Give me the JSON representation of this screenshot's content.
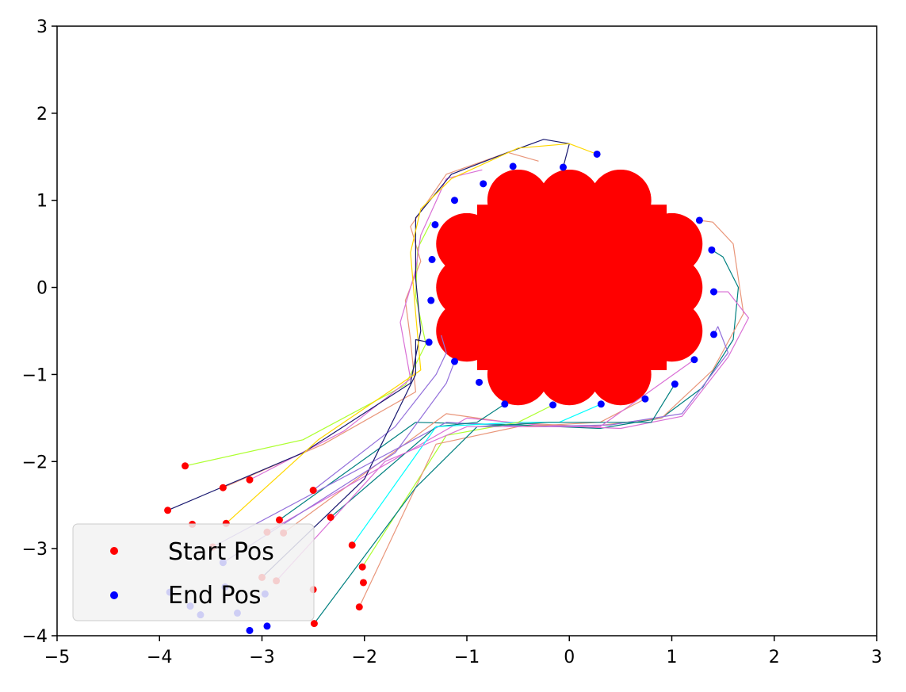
{
  "chart_data": {
    "type": "scatter",
    "title": "",
    "xlabel": "",
    "ylabel": "",
    "xlim": [
      -5,
      3
    ],
    "ylim": [
      -4,
      3
    ],
    "x_ticks": [
      -5,
      -4,
      -3,
      -2,
      -1,
      0,
      1,
      2,
      3
    ],
    "y_ticks": [
      -4,
      -3,
      -2,
      -1,
      0,
      1,
      2,
      3
    ],
    "x_tick_labels": [
      "−5",
      "−4",
      "−3",
      "−2",
      "−1",
      "0",
      "1",
      "2",
      "3"
    ],
    "y_tick_labels": [
      "−4",
      "−3",
      "−2",
      "−1",
      "0",
      "1",
      "2",
      "3"
    ],
    "grid": false,
    "legend": {
      "position": "lower-left",
      "entries": [
        {
          "label": "Start Pos",
          "color": "#ff0000"
        },
        {
          "label": "End Pos",
          "color": "#0000ff"
        }
      ]
    },
    "obstacle": {
      "color": "#ff0000",
      "rect": {
        "x0": -0.9,
        "x1": 0.95,
        "y0": -0.95,
        "y1": 0.95
      },
      "circles": [
        {
          "cx": -0.5,
          "cy": 1.0,
          "r": 0.3
        },
        {
          "cx": 0.0,
          "cy": 1.0,
          "r": 0.3
        },
        {
          "cx": 0.5,
          "cy": 1.0,
          "r": 0.3
        },
        {
          "cx": -0.5,
          "cy": -1.0,
          "r": 0.3
        },
        {
          "cx": 0.0,
          "cy": -1.0,
          "r": 0.3
        },
        {
          "cx": 0.5,
          "cy": -1.0,
          "r": 0.3
        },
        {
          "cx": -1.0,
          "cy": 0.5,
          "r": 0.3
        },
        {
          "cx": -1.0,
          "cy": 0.0,
          "r": 0.3
        },
        {
          "cx": -1.0,
          "cy": -0.5,
          "r": 0.3
        },
        {
          "cx": 1.0,
          "cy": 0.5,
          "r": 0.3
        },
        {
          "cx": 1.0,
          "cy": 0.0,
          "r": 0.3
        },
        {
          "cx": 1.0,
          "cy": -0.5,
          "r": 0.3
        }
      ]
    },
    "start_positions": [
      [
        -3.75,
        -2.05
      ],
      [
        -3.38,
        -2.3
      ],
      [
        -3.12,
        -2.21
      ],
      [
        -3.92,
        -2.56
      ],
      [
        -3.68,
        -2.72
      ],
      [
        -3.35,
        -2.71
      ],
      [
        -2.5,
        -2.33
      ],
      [
        -2.83,
        -2.67
      ],
      [
        -2.79,
        -2.82
      ],
      [
        -2.95,
        -2.81
      ],
      [
        -3.48,
        -2.98
      ],
      [
        -2.33,
        -2.64
      ],
      [
        -2.12,
        -2.96
      ],
      [
        -3.0,
        -3.33
      ],
      [
        -2.86,
        -3.37
      ],
      [
        -2.02,
        -3.21
      ],
      [
        -2.01,
        -3.39
      ],
      [
        -2.5,
        -3.47
      ],
      [
        -2.05,
        -3.67
      ],
      [
        -2.49,
        -3.86
      ]
    ],
    "end_positions": [
      [
        0.27,
        1.53
      ],
      [
        -0.06,
        1.38
      ],
      [
        -0.55,
        1.39
      ],
      [
        -0.84,
        1.19
      ],
      [
        -1.12,
        1.0
      ],
      [
        -1.31,
        0.72
      ],
      [
        -1.34,
        0.32
      ],
      [
        -1.35,
        -0.15
      ],
      [
        -1.37,
        -0.63
      ],
      [
        -1.12,
        -0.85
      ],
      [
        -0.88,
        -1.09
      ],
      [
        -0.63,
        -1.34
      ],
      [
        -0.16,
        -1.35
      ],
      [
        0.31,
        -1.34
      ],
      [
        0.74,
        -1.28
      ],
      [
        1.03,
        -1.11
      ],
      [
        1.22,
        -0.83
      ],
      [
        1.41,
        -0.54
      ],
      [
        1.41,
        -0.05
      ],
      [
        1.39,
        0.43
      ],
      [
        1.27,
        0.77
      ],
      [
        -3.38,
        -3.16
      ],
      [
        -3.9,
        -3.5
      ],
      [
        -3.36,
        -3.44
      ],
      [
        -3.7,
        -3.66
      ],
      [
        -3.6,
        -3.76
      ],
      [
        -3.24,
        -3.74
      ],
      [
        -3.12,
        -3.94
      ],
      [
        -2.95,
        -3.89
      ],
      [
        -2.97,
        -3.52
      ]
    ],
    "trajectories": [
      {
        "color": "#adff2f",
        "points": [
          [
            -3.75,
            -2.05
          ],
          [
            -2.6,
            -1.75
          ],
          [
            -1.6,
            -1.12
          ],
          [
            -1.4,
            -0.65
          ],
          [
            -1.5,
            -0.1
          ],
          [
            -1.48,
            0.45
          ],
          [
            -1.35,
            0.75
          ]
        ]
      },
      {
        "color": "#e9967a",
        "points": [
          [
            -3.38,
            -2.3
          ],
          [
            -2.4,
            -1.8
          ],
          [
            -1.5,
            -1.2
          ],
          [
            -1.55,
            -0.6
          ],
          [
            -1.6,
            -0.15
          ],
          [
            -1.45,
            0.3
          ],
          [
            -1.55,
            0.7
          ],
          [
            -1.2,
            1.3
          ],
          [
            -0.6,
            1.55
          ],
          [
            -0.3,
            1.45
          ]
        ]
      },
      {
        "color": "#da70d6",
        "points": [
          [
            -3.12,
            -2.21
          ],
          [
            -2.2,
            -1.65
          ],
          [
            -1.55,
            -1.05
          ],
          [
            -1.65,
            -0.4
          ],
          [
            -1.5,
            0.2
          ],
          [
            -1.45,
            0.6
          ],
          [
            -1.2,
            1.25
          ],
          [
            -0.85,
            1.35
          ]
        ]
      },
      {
        "color": "#191970",
        "points": [
          [
            -3.92,
            -2.56
          ],
          [
            -2.6,
            -1.9
          ],
          [
            -1.55,
            -1.1
          ],
          [
            -1.45,
            -0.5
          ],
          [
            -1.5,
            0.1
          ],
          [
            -1.5,
            0.8
          ],
          [
            -1.15,
            1.3
          ],
          [
            -0.6,
            1.55
          ],
          [
            -0.25,
            1.7
          ],
          [
            0.0,
            1.65
          ],
          [
            -0.06,
            1.38
          ]
        ]
      },
      {
        "color": "#ffd700",
        "points": [
          [
            -3.35,
            -2.71
          ],
          [
            -2.45,
            -1.75
          ],
          [
            -1.45,
            -0.95
          ],
          [
            -1.5,
            -0.3
          ],
          [
            -1.55,
            0.4
          ],
          [
            -1.45,
            0.9
          ],
          [
            -1.15,
            1.25
          ],
          [
            -0.5,
            1.6
          ],
          [
            0.0,
            1.65
          ],
          [
            0.27,
            1.53
          ]
        ]
      },
      {
        "color": "#9370db",
        "points": [
          [
            -2.5,
            -2.33
          ],
          [
            -1.7,
            -1.6
          ],
          [
            -1.3,
            -1.0
          ],
          [
            -1.2,
            -0.75
          ],
          [
            -1.25,
            -0.55
          ]
        ]
      },
      {
        "color": "#008080",
        "points": [
          [
            -2.83,
            -2.67
          ],
          [
            -1.5,
            -1.55
          ],
          [
            -0.5,
            -1.58
          ],
          [
            0.3,
            -1.62
          ],
          [
            0.9,
            -1.5
          ],
          [
            1.3,
            -1.15
          ],
          [
            1.6,
            -0.6
          ],
          [
            1.65,
            0.0
          ],
          [
            1.5,
            0.35
          ],
          [
            1.39,
            0.43
          ]
        ]
      },
      {
        "color": "#e9967a",
        "points": [
          [
            -2.79,
            -2.82
          ],
          [
            -1.2,
            -1.45
          ],
          [
            -0.6,
            -1.55
          ],
          [
            0.2,
            -1.6
          ],
          [
            0.9,
            -1.5
          ],
          [
            1.4,
            -0.95
          ],
          [
            1.7,
            -0.3
          ],
          [
            1.6,
            0.5
          ],
          [
            1.4,
            0.75
          ],
          [
            1.27,
            0.77
          ]
        ]
      },
      {
        "color": "#da70d6",
        "points": [
          [
            -2.95,
            -2.81
          ],
          [
            -1.0,
            -1.5
          ],
          [
            -0.3,
            -1.58
          ],
          [
            0.5,
            -1.62
          ],
          [
            1.1,
            -1.48
          ],
          [
            1.55,
            -0.8
          ],
          [
            1.75,
            -0.35
          ],
          [
            1.55,
            -0.05
          ],
          [
            1.41,
            -0.05
          ]
        ]
      },
      {
        "color": "#9370db",
        "points": [
          [
            -3.48,
            -2.98
          ],
          [
            -1.2,
            -1.55
          ],
          [
            -0.4,
            -1.6
          ],
          [
            0.4,
            -1.58
          ],
          [
            1.1,
            -1.45
          ],
          [
            1.55,
            -0.75
          ],
          [
            1.45,
            -0.45
          ],
          [
            1.41,
            -0.54
          ]
        ]
      },
      {
        "color": "#008080",
        "points": [
          [
            -2.33,
            -2.64
          ],
          [
            -1.3,
            -1.6
          ],
          [
            -0.9,
            -1.55
          ],
          [
            -0.63,
            -1.34
          ]
        ]
      },
      {
        "color": "#00ffff",
        "points": [
          [
            -2.12,
            -2.96
          ],
          [
            -1.3,
            -1.6
          ],
          [
            -0.5,
            -1.55
          ],
          [
            -0.1,
            -1.55
          ],
          [
            0.31,
            -1.34
          ]
        ]
      },
      {
        "color": "#adff2f",
        "points": [
          [
            -2.02,
            -3.21
          ],
          [
            -1.2,
            -1.7
          ],
          [
            -0.5,
            -1.55
          ],
          [
            -0.16,
            -1.35
          ]
        ]
      },
      {
        "color": "#e9967a",
        "points": [
          [
            -2.05,
            -3.67
          ],
          [
            -1.3,
            -1.8
          ],
          [
            -0.5,
            -1.6
          ],
          [
            0.3,
            -1.55
          ],
          [
            0.74,
            -1.28
          ]
        ]
      },
      {
        "color": "#008080",
        "points": [
          [
            -2.49,
            -3.86
          ],
          [
            -1.5,
            -2.3
          ],
          [
            -0.9,
            -1.6
          ],
          [
            -0.2,
            -1.55
          ],
          [
            0.8,
            -1.55
          ],
          [
            1.03,
            -1.11
          ]
        ]
      },
      {
        "color": "#191970",
        "points": [
          [
            -3.0,
            -3.33
          ],
          [
            -2.0,
            -2.2
          ],
          [
            -1.5,
            -1.0
          ],
          [
            -1.5,
            -0.6
          ],
          [
            -1.37,
            -0.63
          ]
        ]
      },
      {
        "color": "#da70d6",
        "points": [
          [
            -2.86,
            -3.37
          ],
          [
            -1.8,
            -2.0
          ],
          [
            -1.0,
            -1.6
          ],
          [
            -0.4,
            -1.6
          ],
          [
            0.3,
            -1.6
          ],
          [
            1.22,
            -0.83
          ]
        ]
      },
      {
        "color": "#9370db",
        "points": [
          [
            -3.38,
            -3.16
          ],
          [
            -1.7,
            -1.9
          ],
          [
            -1.2,
            -1.1
          ],
          [
            -1.12,
            -0.85
          ]
        ]
      }
    ]
  }
}
